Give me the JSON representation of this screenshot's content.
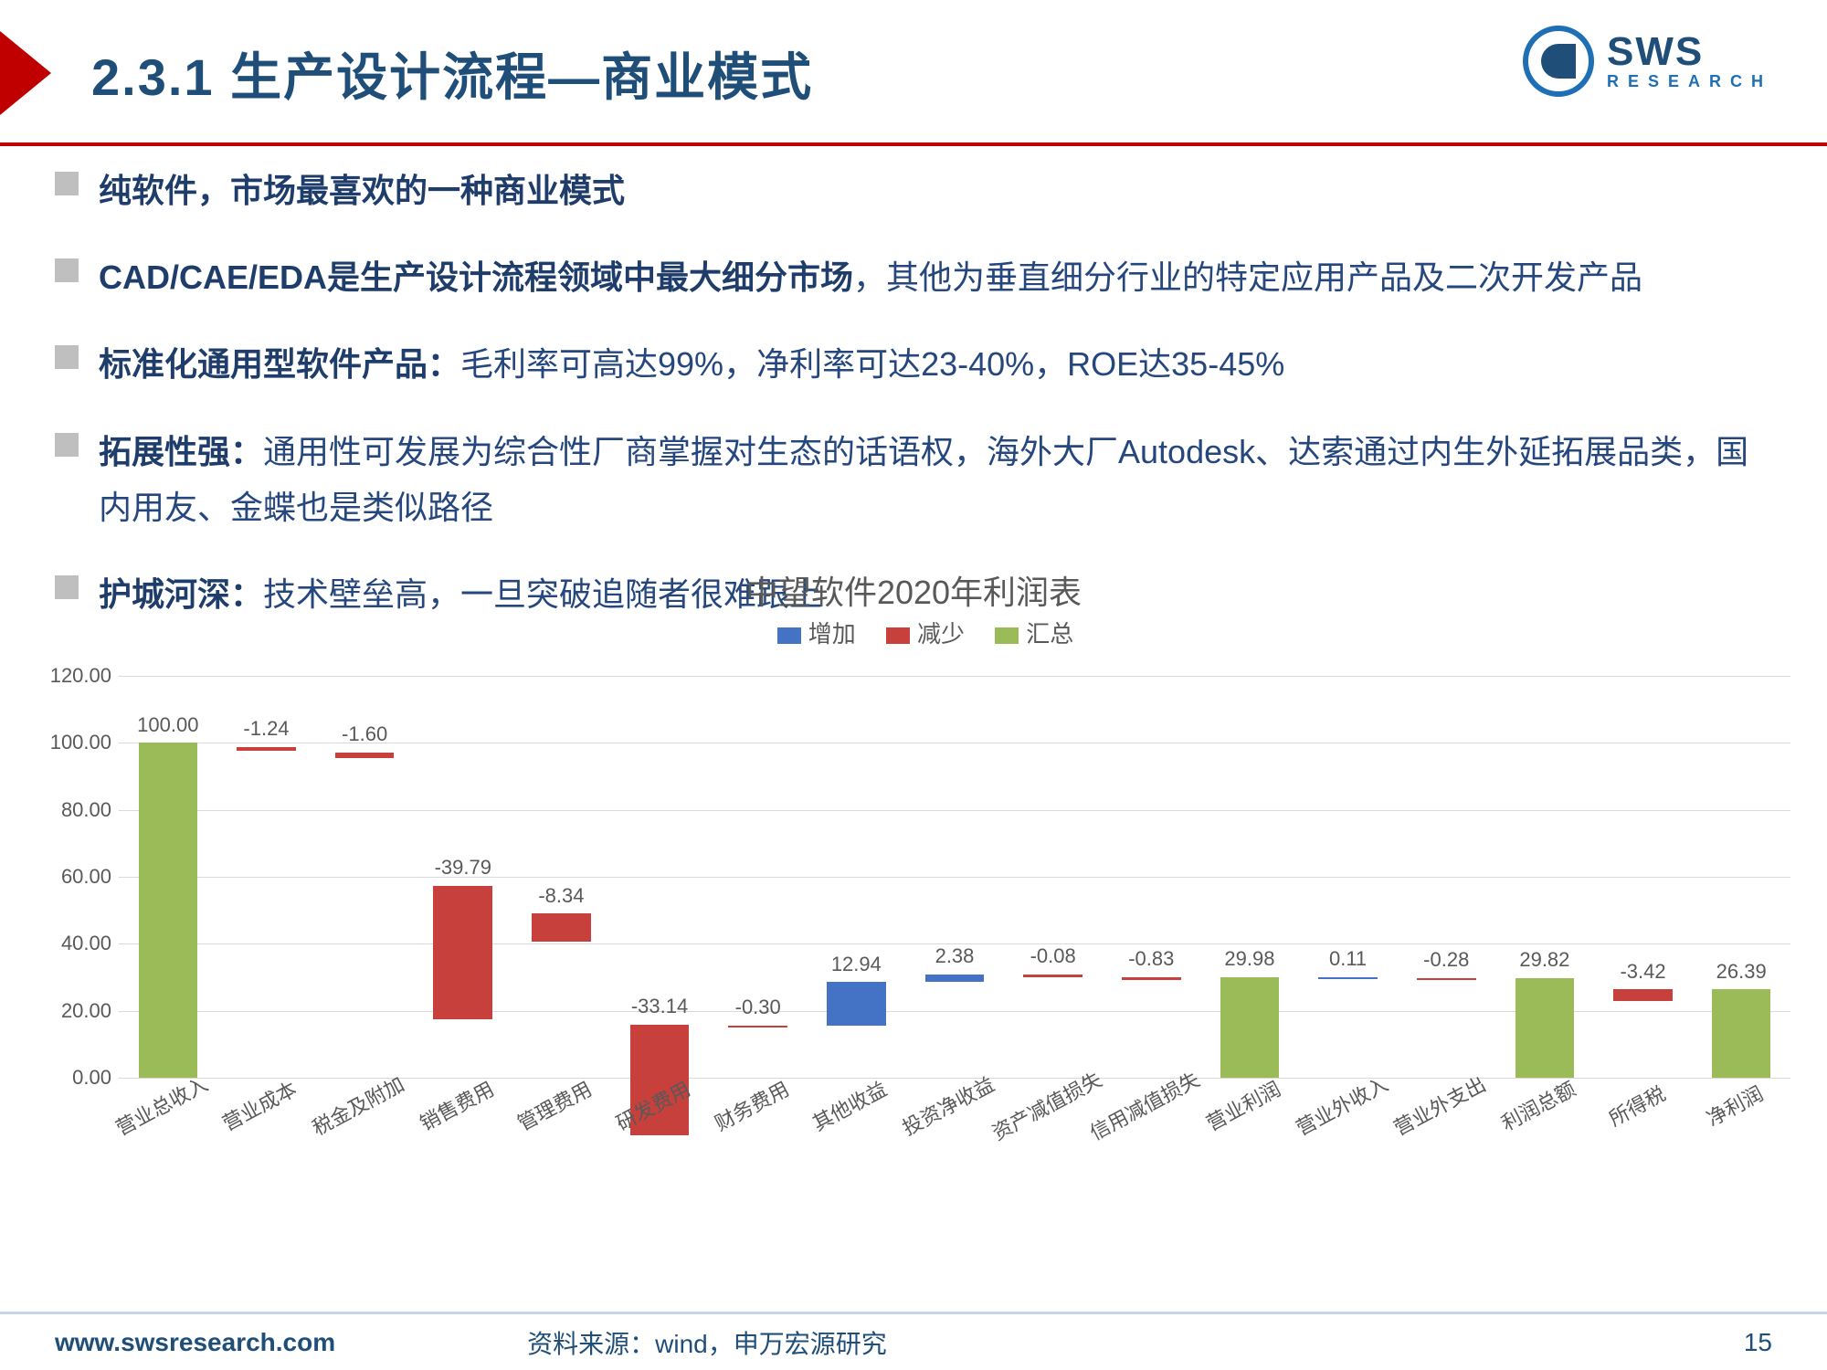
{
  "header": {
    "title": "2.3.1 生产设计流程—商业模式",
    "logo_main": "SWS",
    "logo_sub": "RESEARCH"
  },
  "bullets": [
    {
      "bold": "纯软件，市场最喜欢的一种商业模式",
      "rest": ""
    },
    {
      "bold": "CAD/CAE/EDA是生产设计流程领域中最大细分市场",
      "rest": "，其他为垂直细分行业的特定应用产品及二次开发产品"
    },
    {
      "bold": "标准化通用型软件产品：",
      "rest": "毛利率可高达99%，净利率可达23-40%，ROE达35-45%"
    },
    {
      "bold": "拓展性强：",
      "rest": "通用性可发展为综合性厂商掌握对生态的话语权，海外大厂Autodesk、达索通过内生外延拓展品类，国内用友、金蝶也是类似路径"
    },
    {
      "bold": "护城河深：",
      "rest": "技术壁垒高，一旦突破追随者很难跟上"
    }
  ],
  "chart": {
    "title": "中望软件2020年利润表",
    "legend": {
      "inc": "增加",
      "dec": "减少",
      "tot": "汇总"
    },
    "colors": {
      "inc": "#4472c4",
      "dec": "#c8403c",
      "tot": "#9bbb59",
      "grid": "#d9d9d9",
      "axis": "#595959",
      "bg": "#ffffff"
    },
    "ylim": [
      0,
      120
    ],
    "ystep": 20,
    "label_fontsize": 22,
    "items": [
      {
        "cat": "营业总收入",
        "type": "tot",
        "base": 0,
        "delta": 100.0,
        "label": "100.00"
      },
      {
        "cat": "营业成本",
        "type": "dec",
        "base": 98.76,
        "delta": -1.24,
        "label": "-1.24"
      },
      {
        "cat": "税金及附加",
        "type": "dec",
        "base": 97.16,
        "delta": -1.6,
        "label": "-1.60"
      },
      {
        "cat": "销售费用",
        "type": "dec",
        "base": 57.37,
        "delta": -39.79,
        "label": "-39.79"
      },
      {
        "cat": "管理费用",
        "type": "dec",
        "base": 49.03,
        "delta": -8.34,
        "label": "-8.34"
      },
      {
        "cat": "研发费用",
        "type": "dec",
        "base": 15.89,
        "delta": -33.14,
        "label": "-33.14"
      },
      {
        "cat": "财务费用",
        "type": "dec",
        "base": 15.59,
        "delta": -0.3,
        "label": "-0.30"
      },
      {
        "cat": "其他收益",
        "type": "inc",
        "base": 15.59,
        "delta": 12.94,
        "label": "12.94"
      },
      {
        "cat": "投资净收益",
        "type": "inc",
        "base": 28.53,
        "delta": 2.38,
        "label": "2.38"
      },
      {
        "cat": "资产减值损失",
        "type": "dec",
        "base": 30.83,
        "delta": -0.08,
        "label": "-0.08"
      },
      {
        "cat": "信用减值损失",
        "type": "dec",
        "base": 30.0,
        "delta": -0.83,
        "label": "-0.83"
      },
      {
        "cat": "营业利润",
        "type": "tot",
        "base": 0,
        "delta": 29.98,
        "label": "29.98"
      },
      {
        "cat": "营业外收入",
        "type": "inc",
        "base": 29.98,
        "delta": 0.11,
        "label": "0.11"
      },
      {
        "cat": "营业外支出",
        "type": "dec",
        "base": 29.81,
        "delta": -0.28,
        "label": "-0.28"
      },
      {
        "cat": "利润总额",
        "type": "tot",
        "base": 0,
        "delta": 29.82,
        "label": "29.82"
      },
      {
        "cat": "所得税",
        "type": "dec",
        "base": 26.4,
        "delta": -3.42,
        "label": "-3.42"
      },
      {
        "cat": "净利润",
        "type": "tot",
        "base": 0,
        "delta": 26.39,
        "label": "26.39"
      }
    ]
  },
  "footer": {
    "url": "www.swsresearch.com",
    "source": "资料来源：wind，申万宏源研究",
    "page": "15"
  }
}
